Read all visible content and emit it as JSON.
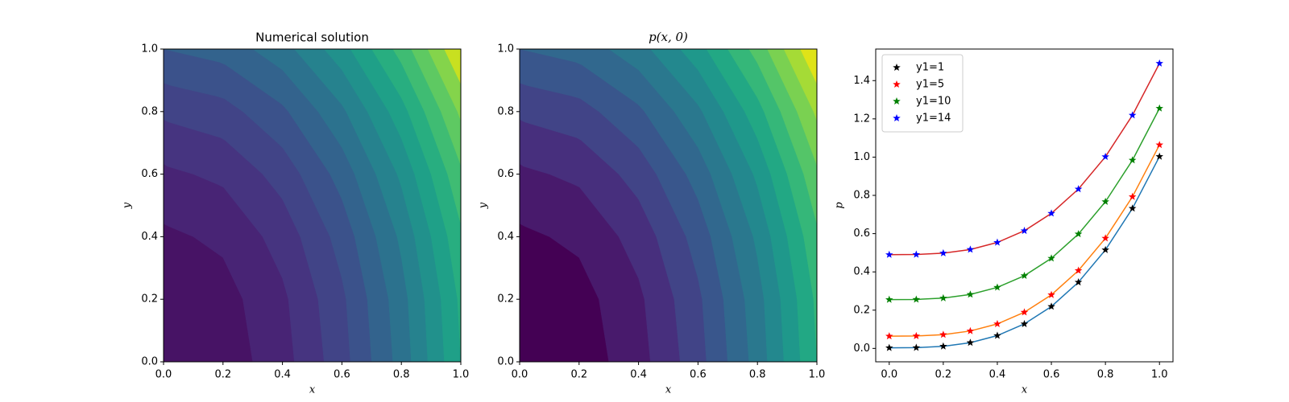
{
  "chart_data": [
    {
      "type": "contour",
      "title": "Numerical solution",
      "xlabel": "x",
      "ylabel": "y",
      "x": [
        0,
        0.2,
        0.4,
        0.6,
        0.8,
        1
      ],
      "y": [
        0,
        0.2,
        0.4,
        0.6,
        0.8,
        1
      ],
      "z": [
        [
          0,
          0.04,
          0.16,
          0.36,
          0.64,
          1
        ],
        [
          0.02,
          0.06,
          0.18,
          0.38,
          0.66,
          1.02
        ],
        [
          0.08,
          0.12,
          0.24,
          0.44,
          0.72,
          1.08
        ],
        [
          0.18,
          0.22,
          0.34,
          0.54,
          0.82,
          1.18
        ],
        [
          0.32,
          0.36,
          0.48,
          0.68,
          0.96,
          1.32
        ],
        [
          0.5,
          0.54,
          0.66,
          0.86,
          1.14,
          1.5
        ]
      ],
      "levels": [
        0,
        0.1,
        0.2,
        0.3,
        0.4,
        0.5,
        0.6,
        0.7,
        0.8,
        0.9,
        1.0,
        1.1,
        1.2,
        1.3,
        1.4,
        1.5
      ],
      "colors": [
        "#471365",
        "#482475",
        "#463480",
        "#414487",
        "#3b528b",
        "#33638d",
        "#2c728e",
        "#26828e",
        "#21918c",
        "#1fa088",
        "#28ae80",
        "#3fbc73",
        "#5ec962",
        "#84d44b",
        "#c8e020"
      ],
      "xlim": [
        0,
        1
      ],
      "ylim": [
        0,
        1
      ],
      "xticks": [
        {
          "value": 0,
          "label": "0.0"
        },
        {
          "value": 0.2,
          "label": "0.2"
        },
        {
          "value": 0.4,
          "label": "0.4"
        },
        {
          "value": 0.6,
          "label": "0.6"
        },
        {
          "value": 0.8,
          "label": "0.8"
        },
        {
          "value": 1,
          "label": "1.0"
        }
      ],
      "yticks": [
        {
          "value": 0,
          "label": "0.0"
        },
        {
          "value": 0.2,
          "label": "0.2"
        },
        {
          "value": 0.4,
          "label": "0.4"
        },
        {
          "value": 0.6,
          "label": "0.6"
        },
        {
          "value": 0.8,
          "label": "0.8"
        },
        {
          "value": 1,
          "label": "1.0"
        }
      ]
    },
    {
      "type": "contour",
      "title": "p(x, 0)",
      "xlabel": "x",
      "ylabel": "y",
      "x": [
        0,
        0.2,
        0.4,
        0.6,
        0.8,
        1
      ],
      "y": [
        0,
        0.2,
        0.4,
        0.6,
        0.8,
        1
      ],
      "z": [
        [
          0,
          0.04,
          0.16,
          0.36,
          0.64,
          1
        ],
        [
          0.02,
          0.06,
          0.18,
          0.38,
          0.66,
          1.02
        ],
        [
          0.08,
          0.12,
          0.24,
          0.44,
          0.72,
          1.08
        ],
        [
          0.18,
          0.22,
          0.34,
          0.54,
          0.82,
          1.18
        ],
        [
          0.32,
          0.36,
          0.48,
          0.68,
          0.96,
          1.32
        ],
        [
          0.5,
          0.54,
          0.66,
          0.86,
          1.14,
          1.5
        ]
      ],
      "levels": [
        0,
        0.1,
        0.2,
        0.3,
        0.4,
        0.5,
        0.6,
        0.7,
        0.8,
        0.9,
        1.0,
        1.1,
        1.2,
        1.3,
        1.4,
        1.5
      ],
      "colors": [
        "#440154",
        "#481a6c",
        "#472f7d",
        "#414487",
        "#39568c",
        "#31688e",
        "#2a788e",
        "#23888e",
        "#1f988b",
        "#22a884",
        "#35b779",
        "#54c568",
        "#7ad151",
        "#a5db36",
        "#dfe318"
      ],
      "xlim": [
        0,
        1
      ],
      "ylim": [
        0,
        1
      ],
      "xticks": [
        {
          "value": 0,
          "label": "0.0"
        },
        {
          "value": 0.2,
          "label": "0.2"
        },
        {
          "value": 0.4,
          "label": "0.4"
        },
        {
          "value": 0.6,
          "label": "0.6"
        },
        {
          "value": 0.8,
          "label": "0.8"
        },
        {
          "value": 1,
          "label": "1.0"
        }
      ],
      "yticks": [
        {
          "value": 0,
          "label": "0.0"
        },
        {
          "value": 0.2,
          "label": "0.2"
        },
        {
          "value": 0.4,
          "label": "0.4"
        },
        {
          "value": 0.6,
          "label": "0.6"
        },
        {
          "value": 0.8,
          "label": "0.8"
        },
        {
          "value": 1,
          "label": "1.0"
        }
      ]
    },
    {
      "type": "line",
      "xlabel": "x",
      "ylabel": "p",
      "legend": "upper left",
      "x": [
        0,
        0.1,
        0.2,
        0.3,
        0.4,
        0.5,
        0.6,
        0.7,
        0.8,
        0.9,
        1.0
      ],
      "series": [
        {
          "name": "y1=1",
          "color": "black",
          "line_color": "#1f77b4",
          "values": [
            0.003,
            0.004,
            0.011,
            0.03,
            0.067,
            0.128,
            0.219,
            0.346,
            0.515,
            0.732,
            1.003
          ]
        },
        {
          "name": "y1=5",
          "color": "red",
          "line_color": "#ff7f0e",
          "values": [
            0.064,
            0.065,
            0.072,
            0.091,
            0.128,
            0.189,
            0.28,
            0.407,
            0.576,
            0.793,
            1.064
          ]
        },
        {
          "name": "y1=10",
          "color": "green",
          "line_color": "#2ca02c",
          "values": [
            0.255,
            0.256,
            0.263,
            0.282,
            0.319,
            0.38,
            0.471,
            0.598,
            0.767,
            0.984,
            1.255
          ]
        },
        {
          "name": "y1=14",
          "color": "blue",
          "line_color": "#d62728",
          "values": [
            0.49,
            0.491,
            0.498,
            0.517,
            0.554,
            0.615,
            0.706,
            0.833,
            1.002,
            1.219,
            1.49
          ]
        }
      ],
      "xlim": [
        -0.05,
        1.05
      ],
      "ylim": [
        -0.07,
        1.565
      ],
      "xticks": [
        {
          "value": 0,
          "label": "0.0"
        },
        {
          "value": 0.2,
          "label": "0.2"
        },
        {
          "value": 0.4,
          "label": "0.4"
        },
        {
          "value": 0.6,
          "label": "0.6"
        },
        {
          "value": 0.8,
          "label": "0.8"
        },
        {
          "value": 1,
          "label": "1.0"
        }
      ],
      "yticks": [
        {
          "value": 0,
          "label": "0.0"
        },
        {
          "value": 0.2,
          "label": "0.2"
        },
        {
          "value": 0.4,
          "label": "0.4"
        },
        {
          "value": 0.6,
          "label": "0.6"
        },
        {
          "value": 0.8,
          "label": "0.8"
        },
        {
          "value": 1,
          "label": "1.0"
        },
        {
          "value": 1.2,
          "label": "1.2"
        },
        {
          "value": 1.4,
          "label": "1.4"
        }
      ]
    }
  ]
}
